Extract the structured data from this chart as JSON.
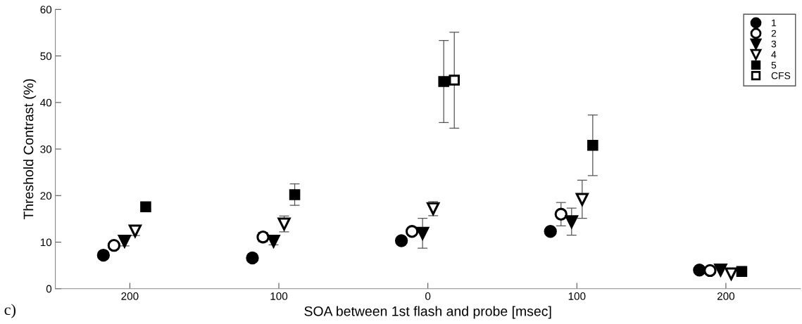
{
  "chart_data": {
    "type": "scatter",
    "xlabel": "SOA between 1st flash and probe [msec]",
    "ylabel": "Threshold Contrast (%)",
    "annotations": [
      "c)"
    ],
    "categories": [
      "200",
      "100",
      "0",
      "100",
      "200"
    ],
    "ylim": [
      0,
      60
    ],
    "yticks": [
      0,
      10,
      20,
      30,
      40,
      50,
      60
    ],
    "legend": "top right",
    "series": [
      {
        "name": "1",
        "color": "#000000",
        "marker": "circle",
        "values": [
          7.2,
          6.6,
          10.3,
          12.3,
          4.0
        ],
        "errors": [
          null,
          null,
          null,
          null,
          null
        ]
      },
      {
        "name": "2",
        "color": "#ffffff",
        "marker": "circle",
        "values": [
          9.3,
          11.1,
          12.3,
          16.0,
          3.9
        ],
        "errors": [
          null,
          1.0,
          0.5,
          2.5,
          null
        ]
      },
      {
        "name": "3",
        "color": "#000000",
        "marker": "triangle",
        "values": [
          10.2,
          10.2,
          11.9,
          14.4,
          4.0
        ],
        "errors": [
          1.0,
          0.8,
          3.2,
          2.9,
          null
        ]
      },
      {
        "name": "4",
        "color": "#ffffff",
        "marker": "triangle",
        "values": [
          12.4,
          13.9,
          17.2,
          19.2,
          3.2
        ],
        "errors": [
          1.0,
          1.7,
          1.5,
          4.1,
          null
        ]
      },
      {
        "name": "5",
        "color": "#000000",
        "marker": "square",
        "values": [
          17.6,
          20.2,
          44.5,
          30.8,
          3.7
        ],
        "errors": [
          null,
          2.3,
          8.8,
          6.5,
          null
        ]
      },
      {
        "name": "CFS",
        "color": "#ffffff",
        "marker": "square",
        "values": [
          null,
          null,
          44.8,
          null,
          null
        ],
        "errors": [
          null,
          null,
          10.3,
          null,
          null
        ]
      }
    ]
  }
}
